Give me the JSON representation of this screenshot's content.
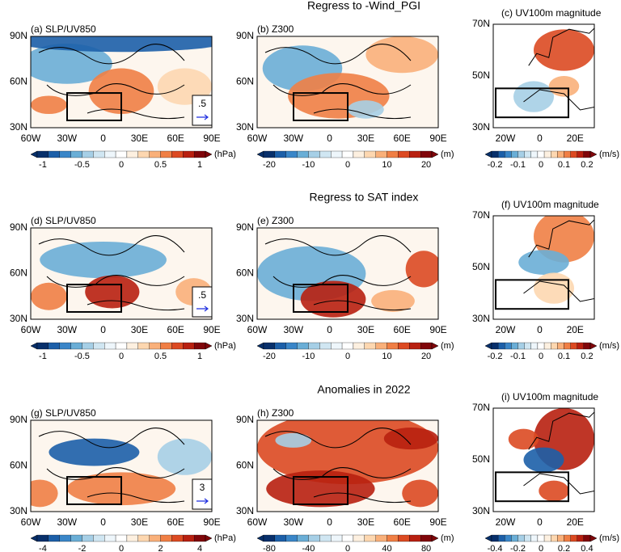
{
  "rows": [
    {
      "title": "Regress to -Wind_PGI",
      "panels": [
        {
          "label": "(a) SLP/UV850",
          "xticks": [
            "60W",
            "30W",
            "0",
            "30E",
            "60E",
            "90E"
          ],
          "yticks": [
            "90N",
            "60N",
            "30N"
          ],
          "colorbar": {
            "ticks": [
              "-1",
              "-0.5",
              "0",
              "0.5",
              "1"
            ],
            "unit": "(hPa)"
          },
          "vector_ref": ".5"
        },
        {
          "label": "(b) Z300",
          "xticks": [
            "60W",
            "30W",
            "0",
            "30E",
            "60E",
            "90E"
          ],
          "yticks": [
            "90N",
            "60N",
            "30N"
          ],
          "colorbar": {
            "ticks": [
              "-20",
              "-10",
              "0",
              "10",
              "20"
            ],
            "unit": "(m)"
          }
        },
        {
          "label": "(c) UV100m magnitude",
          "xticks": [
            "20W",
            "0",
            "20E"
          ],
          "yticks": [
            "70N",
            "50N",
            "30N"
          ],
          "colorbar": {
            "ticks": [
              "-0.2",
              "-0.1",
              "0",
              "0.1",
              "0.2"
            ],
            "unit": "(m/s)"
          }
        }
      ]
    },
    {
      "title": "Regress to SAT index",
      "panels": [
        {
          "label": "(d) SLP/UV850",
          "xticks": [
            "60W",
            "30W",
            "0",
            "30E",
            "60E",
            "90E"
          ],
          "yticks": [
            "90N",
            "60N",
            "30N"
          ],
          "colorbar": {
            "ticks": [
              "-1",
              "-0.5",
              "0",
              "0.5",
              "1"
            ],
            "unit": "(hPa)"
          },
          "vector_ref": ".5"
        },
        {
          "label": "(e) Z300",
          "xticks": [
            "60W",
            "30W",
            "0",
            "30E",
            "60E",
            "90E"
          ],
          "yticks": [
            "90N",
            "60N",
            "30N"
          ],
          "colorbar": {
            "ticks": [
              "-20",
              "-10",
              "0",
              "10",
              "20"
            ],
            "unit": "(m)"
          }
        },
        {
          "label": "(f) UV100m magnitude",
          "xticks": [
            "20W",
            "0",
            "20E"
          ],
          "yticks": [
            "70N",
            "50N",
            "30N"
          ],
          "colorbar": {
            "ticks": [
              "-0.2",
              "-0.1",
              "0",
              "0.1",
              "0.2"
            ],
            "unit": "(m/s)"
          }
        }
      ]
    },
    {
      "title": "Anomalies in 2022",
      "panels": [
        {
          "label": "(g) SLP/UV850",
          "xticks": [
            "60W",
            "30W",
            "0",
            "30E",
            "60E",
            "90E"
          ],
          "yticks": [
            "90N",
            "60N",
            "30N"
          ],
          "colorbar": {
            "ticks": [
              "-4",
              "-2",
              "0",
              "2",
              "4"
            ],
            "unit": "(hPa)"
          },
          "vector_ref": "3"
        },
        {
          "label": "(h) Z300",
          "xticks": [
            "60W",
            "30W",
            "0",
            "30E",
            "60E",
            "90E"
          ],
          "yticks": [
            "90N",
            "60N",
            "30N"
          ],
          "colorbar": {
            "ticks": [
              "-80",
              "-40",
              "0",
              "40",
              "80"
            ],
            "unit": "(m)"
          }
        },
        {
          "label": "(i) UV100m magnitude",
          "xticks": [
            "20W",
            "0",
            "20E"
          ],
          "yticks": [
            "70N",
            "50N",
            "30N"
          ],
          "colorbar": {
            "ticks": [
              "-0.4",
              "-0.2",
              "0",
              "0.2",
              "0.4"
            ],
            "unit": "(m/s)"
          }
        }
      ]
    }
  ]
}
